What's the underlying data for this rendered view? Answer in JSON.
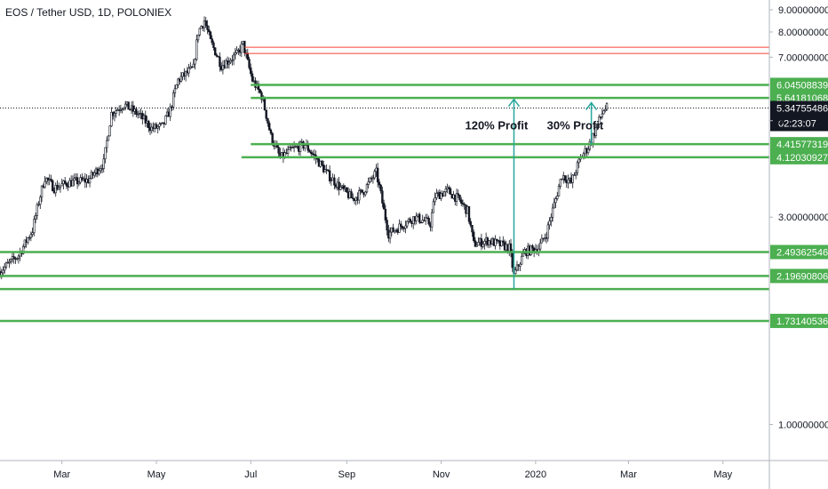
{
  "chart_data": {
    "type": "candlestick",
    "title": "EOS / Tether USD, 1D, POLONIEX",
    "x_tick_labels": [
      "Mar",
      "May",
      "Jul",
      "Sep",
      "Nov",
      "2020",
      "Mar",
      "May"
    ],
    "y_tick_labels": [
      "9.00000000",
      "8.00000000",
      "7.00000000",
      "5.",
      "3.00000000",
      "1.00000000"
    ],
    "y_tick_values": [
      9.0,
      8.0,
      7.0,
      5.0,
      3.0,
      1.0
    ],
    "y_range": [
      0.85,
      9.3
    ],
    "x_range": [
      "2019-01-20",
      "2020-05-31"
    ],
    "last_price": "5.34755486",
    "countdown": "02:23:07",
    "support_levels": [
      {
        "value": 6.04508839,
        "label": "6.04508839",
        "color": "#4caf50"
      },
      {
        "value": 5.64181068,
        "label": "5.64181068",
        "color": "#4caf50"
      },
      {
        "value": 4.41577319,
        "label": "4.41577319",
        "color": "#4caf50"
      },
      {
        "value": 4.12030927,
        "label": "4.12030927",
        "color": "#4caf50"
      },
      {
        "value": 2.49362546,
        "label": "2.49362546",
        "color": "#4caf50"
      },
      {
        "value": 2.19690806,
        "label": "2.19690806",
        "color": "#4caf50"
      },
      {
        "value": 2.05,
        "label": "",
        "color": "#4caf50"
      },
      {
        "value": 1.73140536,
        "label": "1.73140536",
        "color": "#4caf50"
      }
    ],
    "resistance_levels": [
      {
        "value": 7.38,
        "color": "#f44336"
      },
      {
        "value": 7.14,
        "color": "#f44336"
      }
    ],
    "annotations": [
      {
        "text": "120% Profit",
        "date": "2019-12-18",
        "from": 2.05,
        "to": 5.6
      },
      {
        "text": "30% Profit",
        "date": "2020-02-06",
        "from": 4.4,
        "to": 5.5
      }
    ],
    "price_path": [
      [
        "2019-01-20",
        2.25
      ],
      [
        "2019-02-01",
        2.45
      ],
      [
        "2019-02-10",
        2.8
      ],
      [
        "2019-02-18",
        3.7
      ],
      [
        "2019-02-24",
        3.5
      ],
      [
        "2019-03-05",
        3.6
      ],
      [
        "2019-03-18",
        3.65
      ],
      [
        "2019-03-28",
        4.0
      ],
      [
        "2019-04-02",
        5.2
      ],
      [
        "2019-04-10",
        5.45
      ],
      [
        "2019-04-20",
        5.15
      ],
      [
        "2019-04-28",
        4.8
      ],
      [
        "2019-05-05",
        4.85
      ],
      [
        "2019-05-10",
        5.3
      ],
      [
        "2019-05-15",
        6.2
      ],
      [
        "2019-05-25",
        6.6
      ],
      [
        "2019-05-28",
        8.0
      ],
      [
        "2019-06-01",
        8.5
      ],
      [
        "2019-06-05",
        7.6
      ],
      [
        "2019-06-12",
        6.7
      ],
      [
        "2019-06-22",
        7.1
      ],
      [
        "2019-06-26",
        7.5
      ],
      [
        "2019-06-29",
        6.8
      ],
      [
        "2019-07-02",
        6.2
      ],
      [
        "2019-07-08",
        5.7
      ],
      [
        "2019-07-14",
        4.6
      ],
      [
        "2019-07-20",
        4.1
      ],
      [
        "2019-07-28",
        4.3
      ],
      [
        "2019-08-05",
        4.4
      ],
      [
        "2019-08-12",
        4.1
      ],
      [
        "2019-08-20",
        3.75
      ],
      [
        "2019-08-28",
        3.5
      ],
      [
        "2019-09-05",
        3.3
      ],
      [
        "2019-09-12",
        3.45
      ],
      [
        "2019-09-20",
        3.8
      ],
      [
        "2019-09-25",
        3.1
      ],
      [
        "2019-09-28",
        2.75
      ],
      [
        "2019-10-05",
        2.85
      ],
      [
        "2019-10-15",
        3.0
      ],
      [
        "2019-10-25",
        2.9
      ],
      [
        "2019-10-28",
        3.35
      ],
      [
        "2019-11-05",
        3.45
      ],
      [
        "2019-11-12",
        3.3
      ],
      [
        "2019-11-18",
        3.1
      ],
      [
        "2019-11-22",
        2.6
      ],
      [
        "2019-12-01",
        2.65
      ],
      [
        "2019-12-08",
        2.6
      ],
      [
        "2019-12-15",
        2.55
      ],
      [
        "2019-12-18",
        2.2
      ],
      [
        "2019-12-25",
        2.5
      ],
      [
        "2020-01-03",
        2.55
      ],
      [
        "2020-01-08",
        2.75
      ],
      [
        "2020-01-14",
        3.3
      ],
      [
        "2020-01-18",
        3.75
      ],
      [
        "2020-01-24",
        3.6
      ],
      [
        "2020-01-30",
        4.1
      ],
      [
        "2020-02-04",
        4.35
      ],
      [
        "2020-02-08",
        4.7
      ],
      [
        "2020-02-11",
        5.0
      ],
      [
        "2020-02-14",
        5.3
      ],
      [
        "2020-02-16",
        5.35
      ]
    ]
  }
}
